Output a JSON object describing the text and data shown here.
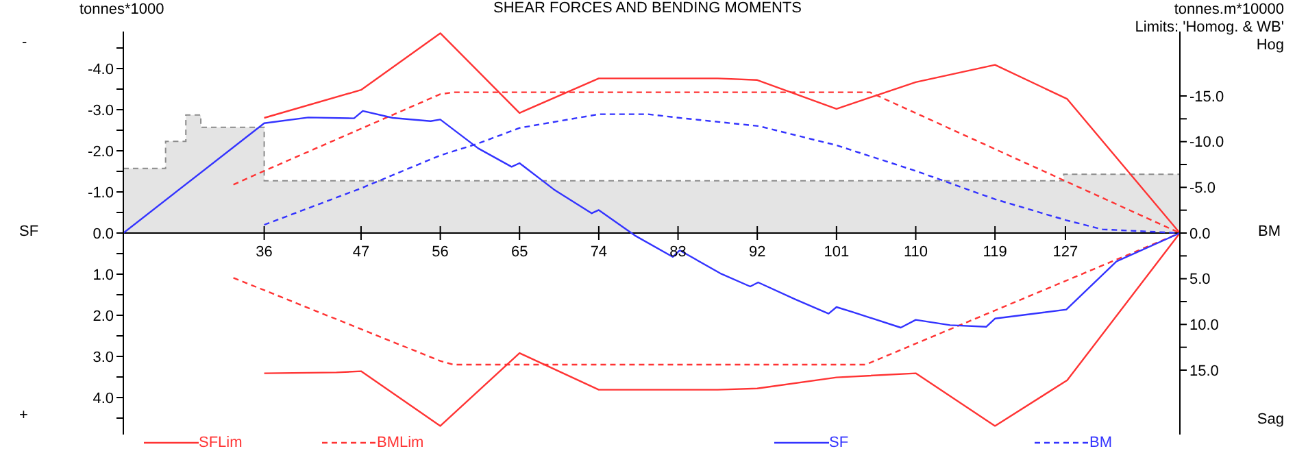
{
  "chart_data": {
    "type": "line",
    "title": "SHEAR FORCES AND BENDING MOMENTS",
    "ylabel": "SF",
    "y2label": "BM",
    "annotations": [
      "tonnes*1000",
      "tonnes.m*10000",
      "Limits: 'Homog. & WB'",
      "Hog",
      "Sag",
      "-",
      "+"
    ],
    "xlim": [
      20,
      140
    ],
    "xticks": [
      36,
      47,
      56,
      65,
      74,
      83,
      92,
      101,
      110,
      119,
      127
    ],
    "ylim": [
      4.9,
      -4.9
    ],
    "yticks": [
      {
        "value": -4.5,
        "label": null
      },
      {
        "value": -4,
        "label": "-4.0"
      },
      {
        "value": -3.5,
        "label": null
      },
      {
        "value": -3,
        "label": "-3.0"
      },
      {
        "value": -2.5,
        "label": null
      },
      {
        "value": -2,
        "label": "-2.0"
      },
      {
        "value": -1.5,
        "label": null
      },
      {
        "value": -1,
        "label": "-1.0"
      },
      {
        "value": -0.5,
        "label": null
      },
      {
        "value": 0,
        "label": "0.0"
      },
      {
        "value": 0.5,
        "label": null
      },
      {
        "value": 1,
        "label": "1.0"
      },
      {
        "value": 1.5,
        "label": null
      },
      {
        "value": 2,
        "label": "2.0"
      },
      {
        "value": 2.5,
        "label": null
      },
      {
        "value": 3,
        "label": "3.0"
      },
      {
        "value": 3.5,
        "label": null
      },
      {
        "value": 4,
        "label": "4.0"
      },
      {
        "value": 4.5,
        "label": null
      }
    ],
    "y2lim": [
      22.05,
      -22.05
    ],
    "y2ticks": [
      {
        "value": -15,
        "label": "-15.0"
      },
      {
        "value": -12.5,
        "label": null
      },
      {
        "value": -10,
        "label": "-10.0"
      },
      {
        "value": -7.5,
        "label": null
      },
      {
        "value": -5,
        "label": "-5.0"
      },
      {
        "value": -2.5,
        "label": null
      },
      {
        "value": 0,
        "label": "0.0"
      },
      {
        "value": 2.5,
        "label": null
      },
      {
        "value": 5,
        "label": "5.0"
      },
      {
        "value": 7.5,
        "label": null
      },
      {
        "value": 10,
        "label": "10.0"
      },
      {
        "value": 12.5,
        "label": null
      },
      {
        "value": 15,
        "label": "15.0"
      }
    ],
    "legend": "bottom",
    "series": [
      {
        "type": "area",
        "color": "#8c8c8c",
        "line_style": "dashed",
        "x": [
          20,
          24.8,
          24.8,
          27.1,
          27.1,
          28.8,
          28.8,
          36,
          36,
          126.8,
          126.8,
          140
        ],
        "values": [
          -1.57,
          -1.57,
          -2.23,
          -2.23,
          -2.87,
          -2.87,
          -2.57,
          -2.57,
          -1.27,
          -1.27,
          -1.43,
          -1.43
        ]
      },
      {
        "name": "SFLim",
        "color": "#ff3333",
        "line_style": "solid",
        "x": [
          36,
          47,
          56,
          65,
          74,
          87.5,
          92,
          101,
          110,
          119,
          127.2,
          140
        ],
        "values": [
          -2.8,
          -3.48,
          -4.86,
          -2.92,
          -3.76,
          -3.76,
          -3.72,
          -3.02,
          -3.67,
          -4.09,
          -3.26,
          0
        ]
      },
      {
        "color": "#ff3333",
        "line_style": "solid",
        "x": [
          36,
          44.2,
          47,
          56,
          65,
          74,
          87.5,
          92,
          101,
          110,
          119,
          127.2,
          140
        ],
        "values": [
          3.41,
          3.39,
          3.36,
          4.69,
          2.92,
          3.81,
          3.81,
          3.78,
          3.51,
          3.41,
          4.69,
          3.58,
          0
        ]
      },
      {
        "name": "BMLim",
        "color": "#ff3333",
        "line_style": "dashed",
        "axis": "y2",
        "x": [
          32.5,
          36,
          56,
          57.5,
          104.8,
          140
        ],
        "values": [
          -5.3,
          -6.8,
          -15.2,
          -15.4,
          -15.4,
          0
        ]
      },
      {
        "color": "#ff3333",
        "line_style": "dashed",
        "axis": "y2",
        "x": [
          32.5,
          56,
          57.5,
          104.3,
          140
        ],
        "values": [
          4.9,
          14.0,
          14.4,
          14.4,
          0
        ]
      },
      {
        "name": "SF",
        "color": "#3333ff",
        "line_style": "solid",
        "x": [
          20,
          36,
          41.0,
          46.2,
          47.2,
          50.6,
          54.9,
          56,
          60.3,
          64.1,
          65,
          68.9,
          73.2,
          74,
          78.1,
          82.4,
          83.2,
          87.8,
          91.2,
          92.1,
          96.3,
          100.1,
          101,
          102.8,
          108.3,
          110,
          113.9,
          118.0,
          119,
          127.1,
          132.8,
          140
        ],
        "values": [
          0,
          -2.67,
          -2.81,
          -2.79,
          -2.97,
          -2.8,
          -2.72,
          -2.76,
          -2.06,
          -1.61,
          -1.7,
          -1.06,
          -0.48,
          -0.56,
          0.06,
          0.58,
          0.42,
          0.98,
          1.3,
          1.2,
          1.61,
          1.96,
          1.8,
          1.92,
          2.3,
          2.11,
          2.24,
          2.28,
          2.08,
          1.86,
          0.69,
          0
        ]
      },
      {
        "name": "BM",
        "color": "#3333ff",
        "line_style": "dashed",
        "axis": "y2",
        "x": [
          36,
          47,
          56,
          60.3,
          65,
          74,
          79.6,
          83.2,
          92.2,
          101,
          110,
          119,
          127.1,
          131.2,
          140
        ],
        "values": [
          -0.9,
          -4.9,
          -8.5,
          -9.8,
          -11.5,
          -13.0,
          -13.0,
          -12.6,
          -11.7,
          -9.6,
          -6.8,
          -3.7,
          -1.4,
          -0.4,
          0
        ]
      }
    ]
  }
}
